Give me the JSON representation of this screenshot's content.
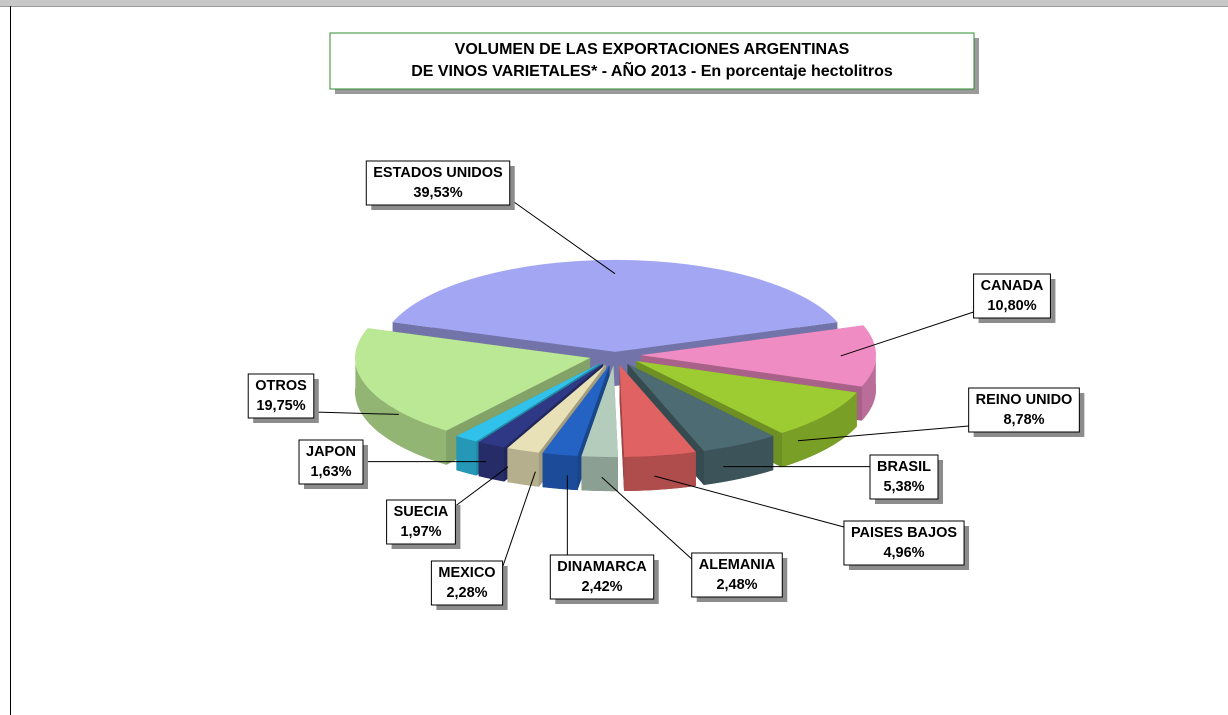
{
  "chart_data": {
    "type": "pie",
    "title": [
      "VOLUMEN DE LAS EXPORTACIONES ARGENTINAS",
      "DE VINOS VARIETALES* - AÑO 2013 - En porcentaje hectolitros"
    ],
    "categories": [
      "ESTADOS UNIDOS",
      "CANADA",
      "REINO UNIDO",
      "BRASIL",
      "PAISES BAJOS",
      "ALEMANIA",
      "DINAMARCA",
      "MEXICO",
      "SUECIA",
      "JAPON",
      "OTROS"
    ],
    "values": [
      39.53,
      10.8,
      8.78,
      5.38,
      4.96,
      2.48,
      2.42,
      2.28,
      1.97,
      1.63,
      19.75
    ],
    "value_labels": [
      "39,53%",
      "10,80%",
      "8,78%",
      "5,38%",
      "4,96%",
      "2,48%",
      "2,42%",
      "2,28%",
      "1,97%",
      "1,63%",
      "19,75%"
    ],
    "colors": [
      "#a3a6f2",
      "#f08cc4",
      "#9ccc32",
      "#4d6b72",
      "#e06262",
      "#b4ccbc",
      "#2462c4",
      "#e8e0b6",
      "#2f3884",
      "#30c2ea",
      "#bbe894"
    ]
  }
}
